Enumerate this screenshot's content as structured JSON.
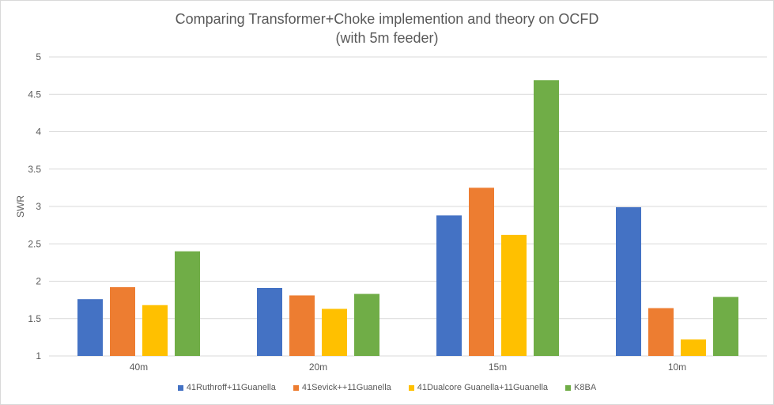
{
  "chart_data": {
    "type": "bar",
    "title": "Comparing Transformer+Choke implemention and theory on OCFD",
    "subtitle": "(with 5m feeder)",
    "xlabel": "",
    "ylabel": "SWR",
    "ylim": [
      1,
      5
    ],
    "yticks": [
      "1",
      "1.5",
      "2",
      "2.5",
      "3",
      "3.5",
      "4",
      "4.5",
      "5"
    ],
    "categories": [
      "40m",
      "20m",
      "15m",
      "10m"
    ],
    "grid": true,
    "legend_position": "bottom",
    "series": [
      {
        "name": "41Ruthroff+11Guanella",
        "color": "#4472c4",
        "values": [
          1.76,
          1.91,
          2.88,
          2.99
        ]
      },
      {
        "name": "41Sevick++11Guanella",
        "color": "#ed7d31",
        "values": [
          1.92,
          1.81,
          3.25,
          1.64
        ]
      },
      {
        "name": "41Dualcore Guanella+11Guanella",
        "color": "#ffc000",
        "values": [
          1.68,
          1.63,
          2.62,
          1.22
        ]
      },
      {
        "name": "K8BA",
        "color": "#70ad47",
        "values": [
          2.4,
          1.83,
          4.69,
          1.79
        ]
      }
    ]
  }
}
